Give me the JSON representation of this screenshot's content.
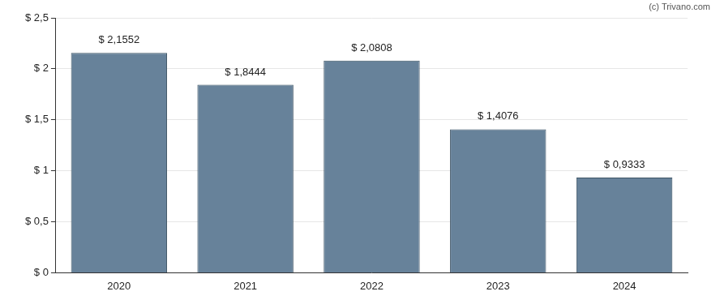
{
  "chart_data": {
    "type": "bar",
    "annotations": [
      "(c) Trivano.com"
    ],
    "categories": [
      "2020",
      "2021",
      "2022",
      "2023",
      "2024"
    ],
    "values": [
      2.1552,
      1.8444,
      2.0808,
      1.4076,
      0.9333
    ],
    "value_labels": [
      "$ 2,1552",
      "$ 1,8444",
      "$ 2,0808",
      "$ 1,4076",
      "$ 0,9333"
    ],
    "color": "#67829a",
    "ylim": [
      0,
      2.5
    ],
    "yticks": [
      {
        "value": 0,
        "label": "$ 0"
      },
      {
        "value": 0.5,
        "label": "$ 0,5"
      },
      {
        "value": 1,
        "label": "$ 1"
      },
      {
        "value": 1.5,
        "label": "$ 1,5"
      },
      {
        "value": 2,
        "label": "$ 2"
      },
      {
        "value": 2.5,
        "label": "$ 2,5"
      }
    ],
    "grid": true,
    "data_labels": true
  }
}
